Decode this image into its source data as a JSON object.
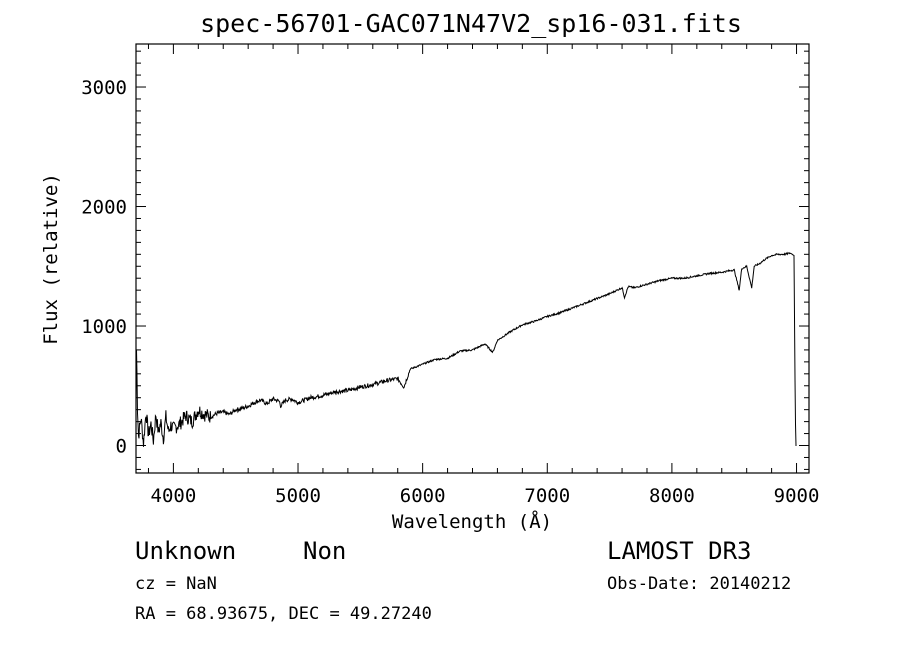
{
  "chart_data": {
    "type": "line",
    "title": "spec-56701-GAC071N47V2_sp16-031.fits",
    "xlabel": "Wavelength (Å)",
    "ylabel": "Flux (relative)",
    "xlim": [
      3700,
      9100
    ],
    "ylim": [
      -230,
      3360
    ],
    "xticks": [
      4000,
      5000,
      6000,
      7000,
      8000,
      9000
    ],
    "yticks": [
      0,
      1000,
      2000,
      3000
    ],
    "xtick_labels": [
      "4000",
      "5000",
      "6000",
      "7000",
      "8000",
      "9000"
    ],
    "ytick_labels": [
      "0",
      "1000",
      "2000",
      "3000"
    ],
    "grid": false,
    "series": [
      {
        "x": [
          3700,
          3705,
          3712,
          3720,
          3740,
          3760,
          3780,
          3800,
          3820,
          3840,
          3860,
          3880,
          3900,
          3920,
          3940,
          3960,
          3980,
          4000,
          4050,
          4100,
          4150,
          4200,
          4250,
          4300,
          4350,
          4400,
          4450,
          4500,
          4550,
          4600,
          4650,
          4700,
          4750,
          4800,
          4850,
          4861,
          4900,
          4950,
          5000,
          5100,
          5200,
          5300,
          5400,
          5500,
          5600,
          5700,
          5800,
          5850,
          5900,
          6000,
          6100,
          6200,
          6300,
          6400,
          6500,
          6563,
          6600,
          6700,
          6800,
          6900,
          7000,
          7100,
          7200,
          7300,
          7400,
          7500,
          7600,
          7620,
          7650,
          7700,
          7800,
          7900,
          8000,
          8100,
          8200,
          8300,
          8400,
          8500,
          8540,
          8560,
          8600,
          8640,
          8660,
          8700,
          8750,
          8800,
          8850,
          8900,
          8950,
          8980,
          8990,
          8995,
          9000
        ],
        "y": [
          350,
          900,
          300,
          80,
          230,
          20,
          280,
          90,
          180,
          40,
          260,
          110,
          190,
          60,
          240,
          120,
          170,
          140,
          180,
          250,
          200,
          300,
          260,
          240,
          270,
          280,
          260,
          300,
          310,
          330,
          360,
          380,
          350,
          390,
          370,
          330,
          380,
          390,
          360,
          400,
          420,
          450,
          460,
          490,
          510,
          540,
          560,
          490,
          640,
          680,
          720,
          730,
          790,
          800,
          850,
          780,
          880,
          950,
          1010,
          1040,
          1080,
          1110,
          1150,
          1190,
          1230,
          1270,
          1320,
          1240,
          1330,
          1320,
          1350,
          1380,
          1400,
          1400,
          1420,
          1440,
          1450,
          1470,
          1300,
          1480,
          1500,
          1320,
          1500,
          1520,
          1560,
          1590,
          1600,
          1600,
          1610,
          1590,
          300,
          0,
          0
        ]
      }
    ]
  },
  "footer": {
    "class_label": "Unknown",
    "subclass_label": "Non",
    "survey": "LAMOST DR3",
    "cz": "cz = NaN",
    "obs_date": "Obs-Date: 20140212",
    "coords": "RA =  68.93675, DEC =  49.27240"
  }
}
